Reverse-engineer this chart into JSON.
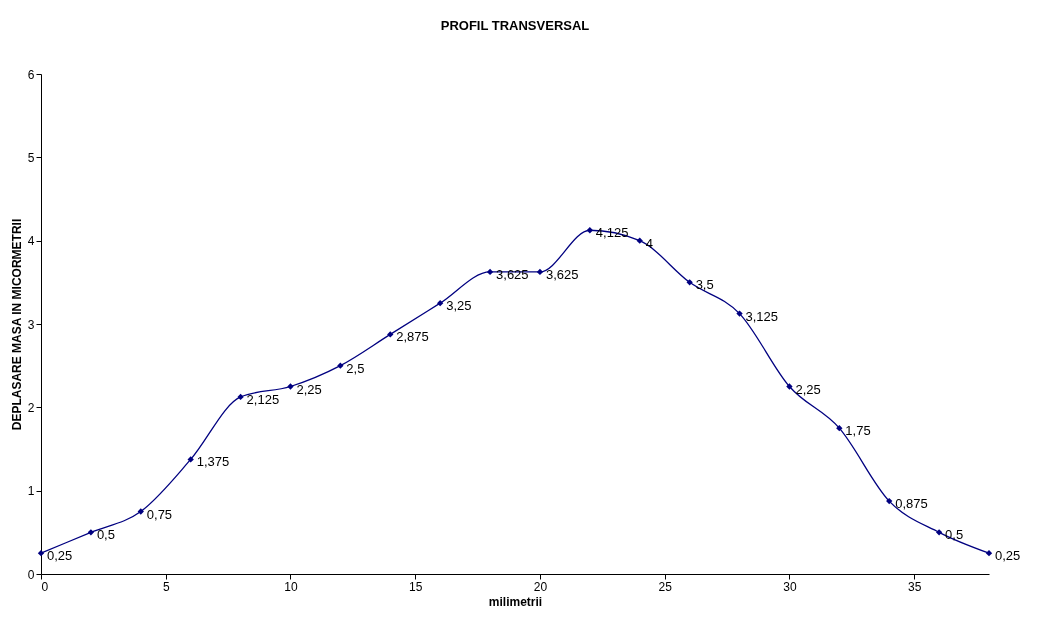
{
  "chart_data": {
    "type": "line",
    "title": "PROFIL TRANSVERSAL",
    "xlabel": "milimetrii",
    "ylabel": "DEPLASARE MASA IN MICORMETRII",
    "x": [
      0,
      2,
      4,
      6,
      8,
      10,
      12,
      14,
      16,
      18,
      20,
      22,
      24,
      26,
      28,
      30,
      32,
      34,
      36,
      38
    ],
    "series": [
      {
        "color": "#000080",
        "values": [
          0.25,
          0.5,
          0.75,
          1.375,
          2.125,
          2.25,
          2.5,
          2.875,
          3.25,
          3.625,
          3.625,
          4.125,
          4,
          3.5,
          3.125,
          2.25,
          1.75,
          0.875,
          0.5,
          0.25
        ],
        "value_labels": [
          "0,25",
          "0,5",
          "0,75",
          "1,375",
          "2,125",
          "2,25",
          "2,5",
          "2,875",
          "3,25",
          "3,625",
          "3,625",
          "4,125",
          "4",
          "3,5",
          "3,125",
          "2,25",
          "1,75",
          "0,875",
          "0,5",
          "0,25"
        ]
      }
    ],
    "xlim": [
      0,
      38
    ],
    "xticks": [
      0,
      5,
      10,
      15,
      20,
      25,
      30,
      35
    ],
    "ylim": [
      0,
      6
    ],
    "yticks": [
      0,
      1,
      2,
      3,
      4,
      5,
      6
    ],
    "grid": false,
    "marker": "diamond",
    "line_style": "solid"
  }
}
